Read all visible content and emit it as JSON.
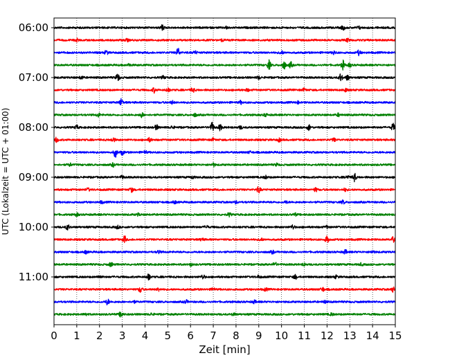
{
  "chart_data": {
    "type": "line",
    "title": "",
    "xlabel": "Zeit  [min]",
    "ylabel": "UTC (Lokalzeit = UTC + 01:00)",
    "xlim": [
      0,
      15
    ],
    "x_ticks": [
      0,
      1,
      2,
      3,
      4,
      5,
      6,
      7,
      8,
      9,
      10,
      11,
      12,
      13,
      14,
      15
    ],
    "x_grid": "dotted",
    "y_ticks": [
      "06:00",
      "07:00",
      "08:00",
      "09:00",
      "10:00",
      "11:00"
    ],
    "trace_interval_min": 15,
    "color_cycle": [
      "#000000",
      "#ff0000",
      "#0000ff",
      "#008000"
    ],
    "traces": [
      {
        "start": "06:00",
        "color": "#000000",
        "events": [
          [
            4.75,
            0.6
          ],
          [
            7.6,
            0.25
          ],
          [
            12.7,
            0.5
          ],
          [
            13.4,
            0.3
          ]
        ]
      },
      {
        "start": "06:15",
        "color": "#ff0000",
        "events": [
          [
            1.0,
            0.3
          ],
          [
            3.2,
            0.3
          ],
          [
            7.4,
            0.25
          ],
          [
            12.9,
            0.35
          ]
        ]
      },
      {
        "start": "06:30",
        "color": "#0000ff",
        "events": [
          [
            2.3,
            0.45
          ],
          [
            5.45,
            1.0
          ],
          [
            6.2,
            0.3
          ],
          [
            10.0,
            0.4
          ],
          [
            12.3,
            0.35
          ],
          [
            13.4,
            0.5
          ]
        ]
      },
      {
        "start": "06:45",
        "color": "#008000",
        "events": [
          [
            3.3,
            0.25
          ],
          [
            9.45,
            1.0
          ],
          [
            10.1,
            1.0
          ],
          [
            10.4,
            0.6
          ],
          [
            12.7,
            0.9
          ],
          [
            13.0,
            0.35
          ]
        ]
      },
      {
        "start": "07:00",
        "color": "#000000",
        "events": [
          [
            1.2,
            0.35
          ],
          [
            2.8,
            0.9
          ],
          [
            4.8,
            0.3
          ],
          [
            9.0,
            0.3
          ],
          [
            12.6,
            0.8
          ],
          [
            12.9,
            0.6
          ]
        ]
      },
      {
        "start": "07:15",
        "color": "#ff0000",
        "events": [
          [
            4.4,
            0.5
          ],
          [
            5.0,
            0.45
          ],
          [
            6.1,
            0.5
          ],
          [
            8.5,
            0.25
          ],
          [
            11.0,
            0.3
          ],
          [
            12.8,
            0.35
          ]
        ]
      },
      {
        "start": "07:30",
        "color": "#0000ff",
        "events": [
          [
            2.95,
            0.75
          ],
          [
            5.2,
            0.3
          ],
          [
            8.2,
            0.3
          ],
          [
            10.7,
            0.25
          ]
        ]
      },
      {
        "start": "07:45",
        "color": "#008000",
        "events": [
          [
            1.95,
            0.4
          ],
          [
            3.85,
            0.5
          ],
          [
            6.2,
            0.3
          ],
          [
            9.3,
            0.3
          ],
          [
            12.5,
            0.3
          ]
        ]
      },
      {
        "start": "08:00",
        "color": "#000000",
        "events": [
          [
            1.0,
            0.4
          ],
          [
            4.5,
            0.5
          ],
          [
            5.2,
            0.3
          ],
          [
            6.95,
            1.0
          ],
          [
            7.3,
            0.6
          ],
          [
            8.2,
            0.3
          ],
          [
            11.2,
            0.6
          ],
          [
            14.9,
            0.8
          ]
        ]
      },
      {
        "start": "08:15",
        "color": "#ff0000",
        "events": [
          [
            0.1,
            0.5
          ],
          [
            2.6,
            0.5
          ],
          [
            4.2,
            0.4
          ],
          [
            7.0,
            0.25
          ],
          [
            9.9,
            0.35
          ],
          [
            12.3,
            0.35
          ]
        ]
      },
      {
        "start": "08:30",
        "color": "#0000ff",
        "events": [
          [
            2.7,
            1.0
          ],
          [
            3.0,
            0.5
          ],
          [
            4.0,
            0.3
          ],
          [
            8.6,
            0.2
          ]
        ]
      },
      {
        "start": "08:45",
        "color": "#008000",
        "events": [
          [
            0.7,
            0.3
          ],
          [
            2.6,
            0.35
          ],
          [
            7.0,
            0.35
          ],
          [
            9.8,
            0.25
          ]
        ]
      },
      {
        "start": "09:00",
        "color": "#000000",
        "events": [
          [
            3.0,
            0.3
          ],
          [
            6.1,
            0.3
          ],
          [
            9.3,
            0.3
          ],
          [
            13.2,
            0.9
          ],
          [
            12.9,
            0.4
          ]
        ]
      },
      {
        "start": "09:15",
        "color": "#ff0000",
        "events": [
          [
            1.5,
            0.3
          ],
          [
            3.4,
            0.5
          ],
          [
            9.0,
            0.65
          ],
          [
            11.5,
            0.4
          ],
          [
            12.8,
            0.3
          ]
        ]
      },
      {
        "start": "09:30",
        "color": "#0000ff",
        "events": [
          [
            2.1,
            0.25
          ],
          [
            5.3,
            0.3
          ],
          [
            8.0,
            0.25
          ],
          [
            10.2,
            0.25
          ],
          [
            12.7,
            0.35
          ]
        ]
      },
      {
        "start": "09:45",
        "color": "#008000",
        "events": [
          [
            1.0,
            0.3
          ],
          [
            3.7,
            0.25
          ],
          [
            7.7,
            0.4
          ],
          [
            10.6,
            0.25
          ]
        ]
      },
      {
        "start": "10:00",
        "color": "#000000",
        "events": [
          [
            0.6,
            0.6
          ],
          [
            2.8,
            0.3
          ],
          [
            6.7,
            0.3
          ],
          [
            10.5,
            0.45
          ],
          [
            12.0,
            0.25
          ]
        ]
      },
      {
        "start": "10:15",
        "color": "#ff0000",
        "events": [
          [
            3.1,
            0.7
          ],
          [
            6.5,
            0.3
          ],
          [
            9.1,
            0.3
          ],
          [
            12.0,
            0.85
          ],
          [
            14.9,
            0.5
          ]
        ]
      },
      {
        "start": "10:30",
        "color": "#0000ff",
        "events": [
          [
            1.4,
            0.3
          ],
          [
            4.6,
            0.3
          ],
          [
            9.6,
            0.3
          ],
          [
            12.8,
            0.4
          ],
          [
            14.0,
            0.3
          ]
        ]
      },
      {
        "start": "10:45",
        "color": "#008000",
        "events": [
          [
            2.5,
            0.45
          ],
          [
            6.0,
            0.3
          ],
          [
            9.7,
            0.5
          ],
          [
            11.0,
            0.3
          ],
          [
            13.5,
            0.25
          ]
        ]
      },
      {
        "start": "11:00",
        "color": "#000000",
        "events": [
          [
            2.0,
            0.35
          ],
          [
            4.15,
            0.7
          ],
          [
            6.55,
            0.45
          ],
          [
            9.0,
            0.3
          ],
          [
            10.6,
            0.45
          ],
          [
            12.4,
            0.3
          ]
        ]
      },
      {
        "start": "11:15",
        "color": "#ff0000",
        "events": [
          [
            3.8,
            0.65
          ],
          [
            4.6,
            0.35
          ],
          [
            7.0,
            0.3
          ],
          [
            9.3,
            0.3
          ],
          [
            11.8,
            0.45
          ],
          [
            14.9,
            0.5
          ]
        ]
      },
      {
        "start": "11:30",
        "color": "#0000ff",
        "events": [
          [
            2.35,
            0.6
          ],
          [
            3.5,
            0.25
          ],
          [
            5.8,
            0.35
          ],
          [
            8.8,
            0.3
          ],
          [
            11.9,
            0.25
          ]
        ]
      },
      {
        "start": "11:45",
        "color": "#008000",
        "events": [
          [
            1.4,
            0.25
          ],
          [
            2.95,
            0.7
          ],
          [
            4.3,
            0.25
          ],
          [
            7.9,
            0.3
          ],
          [
            12.2,
            0.25
          ]
        ]
      }
    ]
  }
}
